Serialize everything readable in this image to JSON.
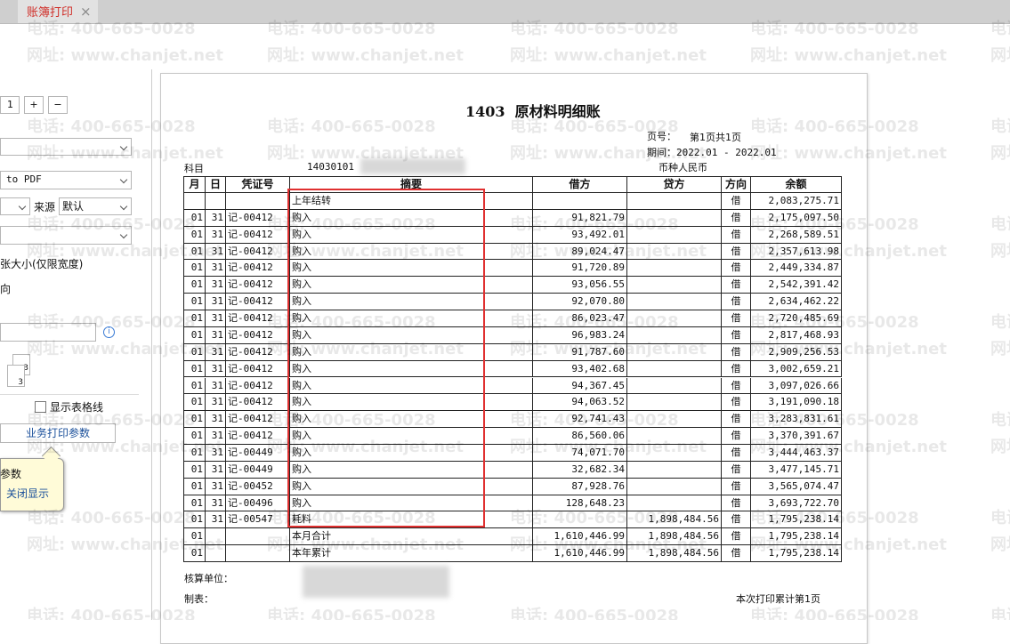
{
  "tab": {
    "title": "账簿打印",
    "close": "×"
  },
  "watermark": {
    "phone": "电话: 400-665-0028",
    "site": "网址: www.chanjet.net"
  },
  "settings": {
    "copies": "1",
    "plus": "+",
    "minus": "−",
    "printer": "to PDF",
    "source_label": "来源",
    "source": "默认",
    "paper_size": "张大小(仅限宽度)",
    "orientation": "向",
    "sample_numbers": [
      "3",
      "3"
    ],
    "show_grid": "显示表格线",
    "business_params": "业务打印参数",
    "tooltip_title": "参数",
    "tooltip_close": "关闭显示"
  },
  "report": {
    "title": "1403  原材料明细账",
    "page_label": "页号：",
    "page": "第1页共1页",
    "period": "期间：2022.01 - 2022.01",
    "subject_label": "科目",
    "subject_code": "14030101",
    "currency": "币种人民币",
    "columns": [
      "月",
      "日",
      "凭证号",
      "摘要",
      "借方",
      "贷方",
      "方向",
      "余额"
    ],
    "rows": [
      [
        null,
        null,
        null,
        "上年结转",
        null,
        null,
        "借",
        "2,083,275.71"
      ],
      [
        "01",
        "31",
        "记-00412",
        "购入",
        "91,821.79",
        null,
        "借",
        "2,175,097.50"
      ],
      [
        "01",
        "31",
        "记-00412",
        "购入",
        "93,492.01",
        null,
        "借",
        "2,268,589.51"
      ],
      [
        "01",
        "31",
        "记-00412",
        "购入",
        "89,024.47",
        null,
        "借",
        "2,357,613.98"
      ],
      [
        "01",
        "31",
        "记-00412",
        "购入",
        "91,720.89",
        null,
        "借",
        "2,449,334.87"
      ],
      [
        "01",
        "31",
        "记-00412",
        "购入",
        "93,056.55",
        null,
        "借",
        "2,542,391.42"
      ],
      [
        "01",
        "31",
        "记-00412",
        "购入",
        "92,070.80",
        null,
        "借",
        "2,634,462.22"
      ],
      [
        "01",
        "31",
        "记-00412",
        "购入",
        "86,023.47",
        null,
        "借",
        "2,720,485.69"
      ],
      [
        "01",
        "31",
        "记-00412",
        "购入",
        "96,983.24",
        null,
        "借",
        "2,817,468.93"
      ],
      [
        "01",
        "31",
        "记-00412",
        "购入",
        "91,787.60",
        null,
        "借",
        "2,909,256.53"
      ],
      [
        "01",
        "31",
        "记-00412",
        "购入",
        "93,402.68",
        null,
        "借",
        "3,002,659.21"
      ],
      [
        "01",
        "31",
        "记-00412",
        "购入",
        "94,367.45",
        null,
        "借",
        "3,097,026.66"
      ],
      [
        "01",
        "31",
        "记-00412",
        "购入",
        "94,063.52",
        null,
        "借",
        "3,191,090.18"
      ],
      [
        "01",
        "31",
        "记-00412",
        "购入",
        "92,741.43",
        null,
        "借",
        "3,283,831.61"
      ],
      [
        "01",
        "31",
        "记-00412",
        "购入",
        "86,560.06",
        null,
        "借",
        "3,370,391.67"
      ],
      [
        "01",
        "31",
        "记-00449",
        "购入",
        "74,071.70",
        null,
        "借",
        "3,444,463.37"
      ],
      [
        "01",
        "31",
        "记-00449",
        "购入",
        "32,682.34",
        null,
        "借",
        "3,477,145.71"
      ],
      [
        "01",
        "31",
        "记-00452",
        "购入",
        "87,928.76",
        null,
        "借",
        "3,565,074.47"
      ],
      [
        "01",
        "31",
        "记-00496",
        "购入",
        "128,648.23",
        null,
        "借",
        "3,693,722.70"
      ],
      [
        "01",
        "31",
        "记-00547",
        "耗料",
        null,
        "1,898,484.56",
        "借",
        "1,795,238.14"
      ],
      [
        "01",
        null,
        null,
        "本月合计",
        "1,610,446.99",
        "1,898,484.56",
        "借",
        "1,795,238.14"
      ],
      [
        "01",
        null,
        null,
        "本年累计",
        "1,610,446.99",
        "1,898,484.56",
        "借",
        "1,795,238.14"
      ]
    ],
    "footer": {
      "unit_label": "核算单位：",
      "maker_label": "制表：",
      "print_count": "本次打印累计第1页"
    }
  }
}
